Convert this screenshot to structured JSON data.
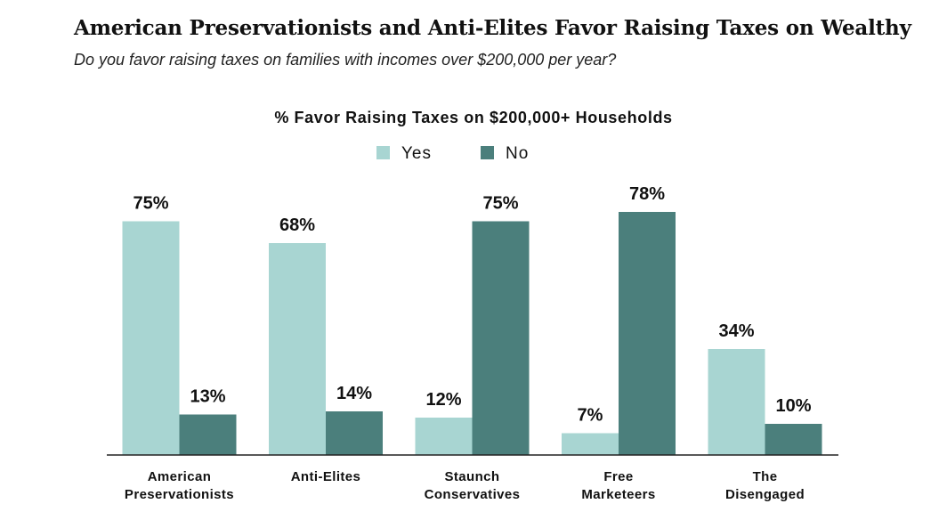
{
  "header": {
    "title": "American Preservationists and Anti-Elites Favor Raising Taxes on Wealthy",
    "subtitle": "Do you favor raising taxes on families with incomes over $200,000 per year?"
  },
  "chart_data": {
    "type": "bar",
    "title": "% Favor Raising Taxes on $200,000+ Households",
    "legend_position": "top-center",
    "grid": false,
    "ylim": [
      0,
      100
    ],
    "categories": [
      [
        "American",
        "Preservationists"
      ],
      [
        "Anti-Elites"
      ],
      [
        "Staunch",
        "Conservatives"
      ],
      [
        "Free",
        "Marketeers"
      ],
      [
        "The",
        "Disengaged"
      ]
    ],
    "series": [
      {
        "name": "Yes",
        "color": "#a8d5d2",
        "values": [
          75,
          68,
          12,
          7,
          34
        ]
      },
      {
        "name": "No",
        "color": "#4b7f7c",
        "values": [
          13,
          14,
          75,
          78,
          10
        ]
      }
    ],
    "value_suffix": "%"
  }
}
